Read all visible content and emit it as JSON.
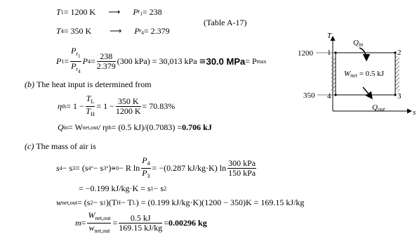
{
  "rows": [
    [
      "T",
      "1",
      " = 1200 K",
      "⟶",
      "P",
      "r",
      "1",
      " = 238"
    ],
    [
      "T",
      "4",
      " = 350 K",
      "⟶",
      "P",
      "r",
      "4",
      " = 2.379"
    ]
  ],
  "table_ref": "(Table A-17)",
  "p1": [
    "P",
    "1",
    " = ",
    "P",
    "r",
    "1",
    "P",
    "r",
    "4",
    "P",
    "4",
    " = ",
    "238",
    "2.379",
    "(300 kPa) = 30,013 kPa ≅ ",
    "30.0 MPa",
    " = P",
    "max"
  ],
  "part_b": {
    "label": "(b)",
    "text": "The heat input is determined from"
  },
  "eta": [
    "η",
    "th",
    " = 1 − ",
    "T",
    "L",
    "T",
    "H",
    " = 1 − ",
    "350 K",
    "1200 K",
    " = 70.83%"
  ],
  "qin": [
    "Q",
    "in",
    " = W",
    "net,out",
    " / η",
    "th",
    " = (0.5 kJ)/(0.7083) = ",
    "0.706 kJ"
  ],
  "part_c": {
    "label": "(c)",
    "text": "The mass of air is"
  },
  "s43": [
    "s",
    "4",
    " − s",
    "3",
    " = (s",
    "4",
    "°",
    " − s",
    "3",
    "°",
    ")",
    "≅0",
    " − R ln ",
    "P",
    "4",
    "P",
    "3",
    " = −(0.287 kJ/kg·K) ln ",
    "300 kPa",
    "150 kPa"
  ],
  "s_line2": [
    "= −0.199 kJ/kg·K = s",
    "1",
    " − s",
    "2"
  ],
  "wnet": [
    "w",
    "net,out",
    " = (s",
    "2",
    " − s",
    "1",
    ")(T",
    "H",
    " − T",
    "L",
    ") = (0.199 kJ/kg·K)(1200 − 350)K = 169.15 kJ/kg"
  ],
  "mass": [
    "m",
    " = ",
    "W",
    "net,out",
    "w",
    "net,out",
    " = ",
    "0.5 kJ",
    "169.15 kJ/kg",
    " = ",
    "0.00296 kg"
  ],
  "diagram": {
    "y_axis": "T",
    "x_axis": "s",
    "t_high": "1200",
    "t_low": "350",
    "states": [
      "1",
      "2",
      "3",
      "4"
    ],
    "q_in": [
      "Q",
      "in"
    ],
    "q_out": [
      "Q",
      "out"
    ],
    "w_net": [
      "W",
      "net",
      " = 0.5 kJ"
    ]
  }
}
